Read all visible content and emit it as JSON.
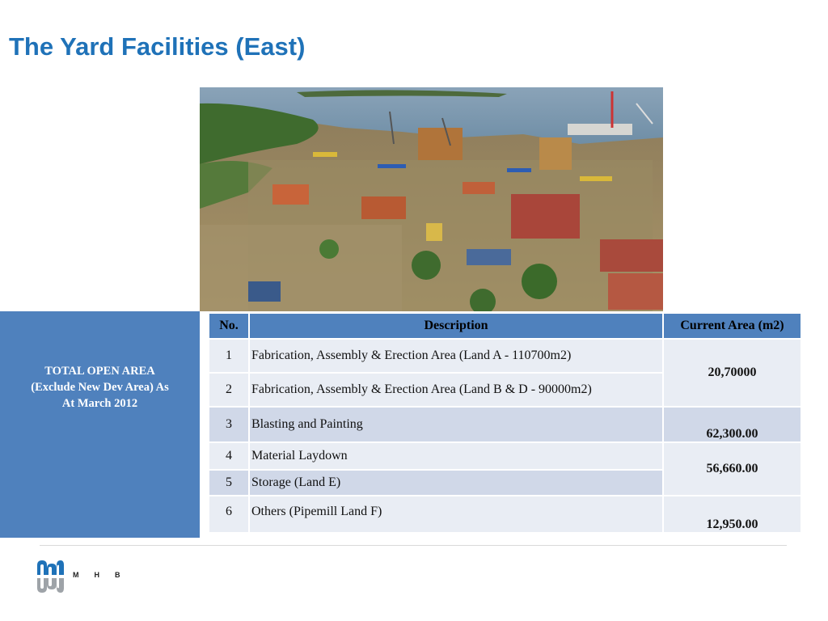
{
  "title": "The Yard Facilities (East)",
  "side_panel": {
    "line1": "TOTAL OPEN AREA",
    "line2": "(Exclude New Dev Area) As",
    "line3": "At March 2012"
  },
  "table": {
    "headers": [
      "No.",
      "Description",
      "Current Area (m2)"
    ],
    "rows": [
      {
        "no": "1",
        "description": "Fabrication, Assembly & Erection Area (Land A - 110700m2)"
      },
      {
        "no": "2",
        "description": "Fabrication, Assembly & Erection Area (Land B & D - 90000m2)"
      },
      {
        "no": "3",
        "description": "Blasting and Painting"
      },
      {
        "no": "4",
        "description": "Material Laydown"
      },
      {
        "no": "5",
        "description": "Storage (Land E)"
      },
      {
        "no": "6",
        "description": "Others (Pipemill Land F)"
      }
    ],
    "areas": [
      "20,70000",
      "62,300.00",
      "56,660.00",
      "12,950.00"
    ]
  },
  "logo": {
    "text": "MHB",
    "colors": {
      "blue": "#1f72b8",
      "gray": "#9ea3a8"
    }
  },
  "colors": {
    "title": "#1f72b8",
    "header_fill": "#4f81bd",
    "row_light": "#e9edf4",
    "row_dark": "#d0d8e8"
  }
}
